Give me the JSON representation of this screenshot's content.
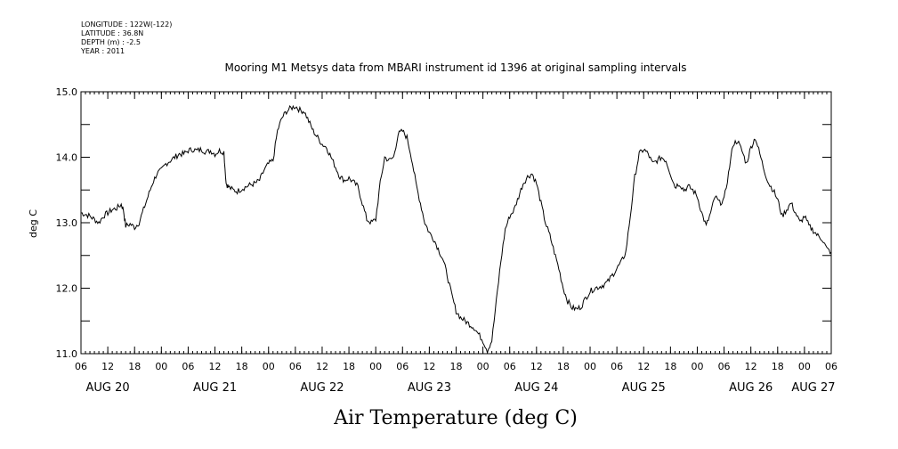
{
  "meta": {
    "longitude": "LONGITUDE : 122W(-122)",
    "latitude": "LATITUDE : 36.8N",
    "depth": "DEPTH (m) : -2.5",
    "year": "YEAR : 2011"
  },
  "chart_data": {
    "type": "line",
    "title": "Mooring M1 Metsys data from MBARI instrument id 1396 at original sampling intervals",
    "xlabel": "Air Temperature (deg C)",
    "ylabel": "deg C",
    "ylim": [
      11.0,
      15.0
    ],
    "y_ticks": [
      "11.0",
      "12.0",
      "13.0",
      "14.0",
      "15.0"
    ],
    "x_hour_ticks": [
      "06",
      "12",
      "18",
      "00",
      "06",
      "12",
      "18",
      "00",
      "06",
      "12",
      "18",
      "00",
      "06",
      "12",
      "18",
      "00",
      "06",
      "12",
      "18",
      "00",
      "06",
      "12",
      "18",
      "00",
      "06",
      "12",
      "18",
      "00",
      "06"
    ],
    "x_date_labels": [
      "AUG 20",
      "AUG 21",
      "AUG 22",
      "AUG 23",
      "AUG 24",
      "AUG 25",
      "AUG 26",
      "AUG 27"
    ],
    "x_unit": "hours since 2011-08-20 00:00",
    "xlim": [
      6,
      174
    ],
    "grid": false,
    "series": [
      {
        "color": "#000000",
        "points": [
          [
            6,
            13.15
          ],
          [
            7,
            13.13
          ],
          [
            8,
            13.1
          ],
          [
            9,
            13.05
          ],
          [
            10,
            13.0
          ],
          [
            11,
            13.1
          ],
          [
            12,
            13.15
          ],
          [
            13,
            13.2
          ],
          [
            14,
            13.22
          ],
          [
            15,
            13.28
          ],
          [
            15.5,
            13.2
          ],
          [
            16,
            12.95
          ],
          [
            17,
            12.98
          ],
          [
            18,
            12.93
          ],
          [
            19,
            13.0
          ],
          [
            20,
            13.2
          ],
          [
            21,
            13.4
          ],
          [
            22,
            13.6
          ],
          [
            23,
            13.75
          ],
          [
            24,
            13.8
          ],
          [
            25,
            13.9
          ],
          [
            26,
            13.95
          ],
          [
            27,
            14.0
          ],
          [
            28,
            14.05
          ],
          [
            29,
            14.05
          ],
          [
            30,
            14.1
          ],
          [
            31,
            14.12
          ],
          [
            32,
            14.1
          ],
          [
            33,
            14.12
          ],
          [
            34,
            14.08
          ],
          [
            35,
            14.1
          ],
          [
            36,
            14.05
          ],
          [
            37,
            14.1
          ],
          [
            38,
            14.08
          ],
          [
            38.5,
            13.6
          ],
          [
            39,
            13.55
          ],
          [
            40,
            13.5
          ],
          [
            41,
            13.48
          ],
          [
            42,
            13.52
          ],
          [
            43,
            13.55
          ],
          [
            44,
            13.58
          ],
          [
            45,
            13.6
          ],
          [
            46,
            13.65
          ],
          [
            47,
            13.8
          ],
          [
            48,
            13.9
          ],
          [
            49,
            13.95
          ],
          [
            50,
            14.4
          ],
          [
            51,
            14.6
          ],
          [
            52,
            14.7
          ],
          [
            53,
            14.75
          ],
          [
            54,
            14.78
          ],
          [
            55,
            14.72
          ],
          [
            56,
            14.7
          ],
          [
            57,
            14.55
          ],
          [
            58,
            14.4
          ],
          [
            59,
            14.3
          ],
          [
            60,
            14.2
          ],
          [
            61,
            14.15
          ],
          [
            62,
            14.0
          ],
          [
            63,
            13.85
          ],
          [
            64,
            13.7
          ],
          [
            65,
            13.65
          ],
          [
            66,
            13.68
          ],
          [
            67,
            13.62
          ],
          [
            68,
            13.55
          ],
          [
            69,
            13.3
          ],
          [
            70,
            13.05
          ],
          [
            71,
            13.0
          ],
          [
            72,
            13.05
          ],
          [
            73,
            13.6
          ],
          [
            74,
            14.0
          ],
          [
            75,
            13.95
          ],
          [
            76,
            14.0
          ],
          [
            77,
            14.35
          ],
          [
            78,
            14.4
          ],
          [
            79,
            14.3
          ],
          [
            80,
            14.0
          ],
          [
            81,
            13.6
          ],
          [
            82,
            13.3
          ],
          [
            83,
            13.0
          ],
          [
            84,
            12.85
          ],
          [
            85,
            12.75
          ],
          [
            86,
            12.6
          ],
          [
            87,
            12.45
          ],
          [
            88,
            12.2
          ],
          [
            89,
            11.9
          ],
          [
            90,
            11.65
          ],
          [
            91,
            11.55
          ],
          [
            92,
            11.5
          ],
          [
            93,
            11.45
          ],
          [
            94,
            11.4
          ],
          [
            95,
            11.3
          ],
          [
            96,
            11.2
          ],
          [
            97,
            11.05
          ],
          [
            98,
            11.2
          ],
          [
            99,
            11.8
          ],
          [
            100,
            12.4
          ],
          [
            101,
            12.9
          ],
          [
            102,
            13.1
          ],
          [
            103,
            13.2
          ],
          [
            104,
            13.4
          ],
          [
            105,
            13.6
          ],
          [
            106,
            13.7
          ],
          [
            107,
            13.75
          ],
          [
            108,
            13.6
          ],
          [
            109,
            13.3
          ],
          [
            110,
            13.0
          ],
          [
            111,
            12.8
          ],
          [
            112,
            12.55
          ],
          [
            113,
            12.3
          ],
          [
            114,
            12.0
          ],
          [
            115,
            11.8
          ],
          [
            116,
            11.7
          ],
          [
            117,
            11.68
          ],
          [
            118,
            11.72
          ],
          [
            119,
            11.85
          ],
          [
            120,
            11.95
          ],
          [
            121,
            12.0
          ],
          [
            122,
            12.02
          ],
          [
            123,
            12.05
          ],
          [
            124,
            12.1
          ],
          [
            125,
            12.2
          ],
          [
            126,
            12.3
          ],
          [
            127,
            12.4
          ],
          [
            128,
            12.55
          ],
          [
            129,
            13.1
          ],
          [
            130,
            13.7
          ],
          [
            131,
            14.05
          ],
          [
            132,
            14.12
          ],
          [
            133,
            14.05
          ],
          [
            134,
            13.9
          ],
          [
            135,
            13.95
          ],
          [
            136,
            14.0
          ],
          [
            137,
            13.95
          ],
          [
            138,
            13.75
          ],
          [
            139,
            13.55
          ],
          [
            140,
            13.6
          ],
          [
            141,
            13.5
          ],
          [
            142,
            13.55
          ],
          [
            143,
            13.5
          ],
          [
            144,
            13.4
          ],
          [
            145,
            13.15
          ],
          [
            146,
            12.95
          ],
          [
            147,
            13.15
          ],
          [
            148,
            13.4
          ],
          [
            149,
            13.3
          ],
          [
            150,
            13.35
          ],
          [
            151,
            13.75
          ],
          [
            152,
            14.2
          ],
          [
            153,
            14.25
          ],
          [
            154,
            14.1
          ],
          [
            155,
            13.9
          ],
          [
            156,
            14.15
          ],
          [
            157,
            14.3
          ],
          [
            158,
            14.05
          ],
          [
            159,
            13.8
          ],
          [
            160,
            13.6
          ],
          [
            161,
            13.5
          ],
          [
            162,
            13.35
          ],
          [
            163,
            13.1
          ],
          [
            164,
            13.2
          ],
          [
            165,
            13.3
          ],
          [
            166,
            13.15
          ],
          [
            167,
            13.0
          ],
          [
            168,
            13.1
          ],
          [
            169,
            12.95
          ],
          [
            170,
            12.88
          ],
          [
            171,
            12.8
          ],
          [
            172,
            12.75
          ],
          [
            173,
            12.6
          ],
          [
            174,
            12.55
          ]
        ]
      }
    ]
  }
}
